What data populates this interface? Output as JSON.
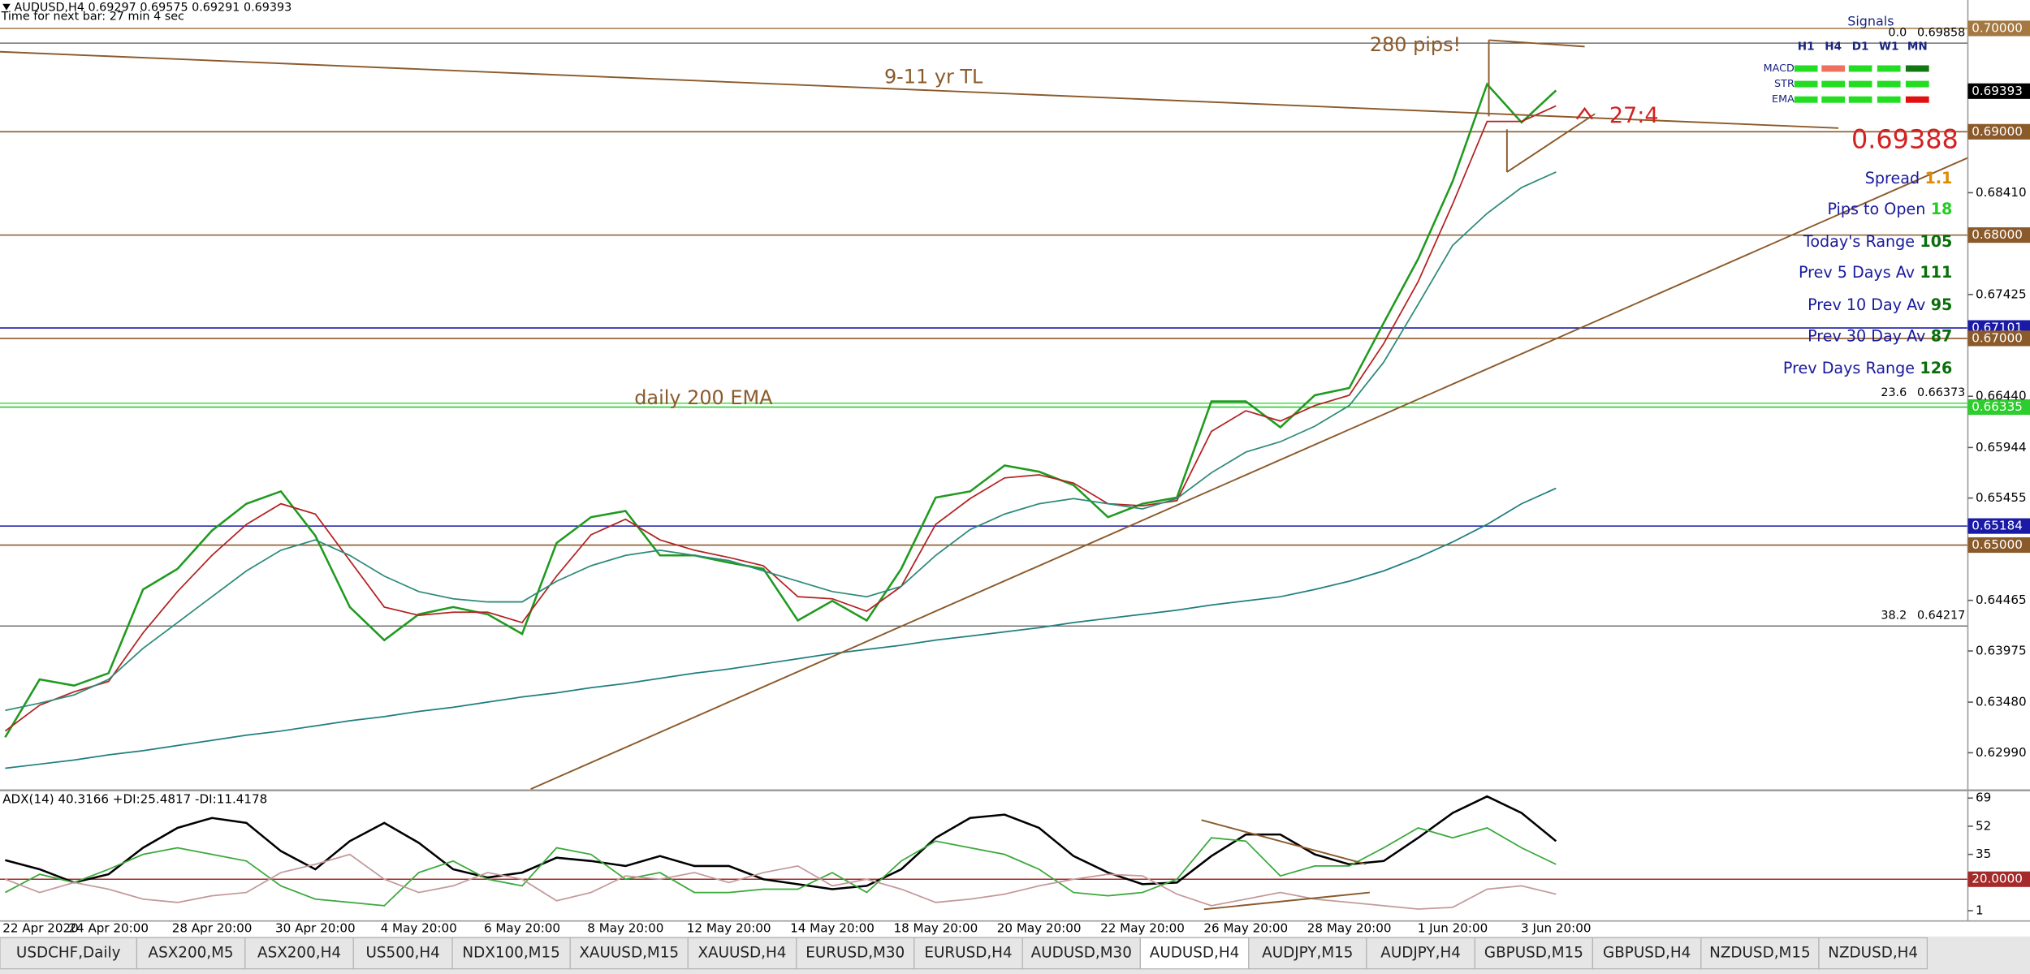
{
  "header": {
    "symbol_line": "AUDUSD,H4  0.69297 0.69575 0.69291 0.69393",
    "timer": "Time for next bar: 27 min 4 sec"
  },
  "annotations": {
    "pips": "280 pips!",
    "trendline": "9-11 yr TL",
    "ema200": "daily 200 EMA",
    "ratio": "27:4",
    "price": "0.69388"
  },
  "signals": {
    "title": "Signals",
    "columns": [
      "H1",
      "H4",
      "D1",
      "W1",
      "MN"
    ],
    "rows": [
      {
        "name": "MACD",
        "colors": [
          "#22dd22",
          "#f07060",
          "#22dd22",
          "#22dd22",
          "#117711"
        ]
      },
      {
        "name": "STR",
        "colors": [
          "#22dd22",
          "#22dd22",
          "#22dd22",
          "#22dd22",
          "#22dd22"
        ]
      },
      {
        "name": "EMA",
        "colors": [
          "#22dd22",
          "#22dd22",
          "#22dd22",
          "#22dd22",
          "#e01010"
        ]
      }
    ]
  },
  "info_panel": [
    {
      "label": "Spread",
      "value": 1.1,
      "color": "#e08a00"
    },
    {
      "label": "Pips to Open",
      "value": 18,
      "color": "#22cc22"
    },
    {
      "label": "Today's Range",
      "value": 105,
      "color": "#0a6e0a"
    },
    {
      "label": "Prev 5 Days Av",
      "value": 111,
      "color": "#0a6e0a"
    },
    {
      "label": "Prev 10 Day Av",
      "value": 95,
      "color": "#0a6e0a"
    },
    {
      "label": "Prev 30 Day Av",
      "value": 87,
      "color": "#0a6e0a"
    },
    {
      "label": "Prev Days Range",
      "value": 126,
      "color": "#0a6e0a"
    }
  ],
  "tabs": [
    {
      "label": "USDCHF,Daily"
    },
    {
      "label": "ASX200,M5"
    },
    {
      "label": "ASX200,H4"
    },
    {
      "label": "US500,H4"
    },
    {
      "label": "NDX100,M15"
    },
    {
      "label": "XAUUSD,M15"
    },
    {
      "label": "XAUUSD,H4"
    },
    {
      "label": "EURUSD,M30"
    },
    {
      "label": "EURUSD,H4"
    },
    {
      "label": "AUDUSD,M30"
    },
    {
      "label": "AUDUSD,H4",
      "active": true
    },
    {
      "label": "AUDJPY,M15"
    },
    {
      "label": "AUDJPY,H4"
    },
    {
      "label": "GBPUSD,M15"
    },
    {
      "label": "GBPUSD,H4"
    },
    {
      "label": "NZDUSD,M15"
    },
    {
      "label": "NZDUSD,H4"
    }
  ],
  "chart_data": [
    {
      "type": "line",
      "categories": [
        "22 Apr 2020",
        null,
        null,
        "24 Apr 20:00",
        null,
        null,
        "28 Apr 20:00",
        null,
        null,
        "30 Apr 20:00",
        null,
        null,
        "4 May 20:00",
        null,
        null,
        "6 May 20:00",
        null,
        null,
        "8 May 20:00",
        null,
        null,
        "12 May 20:00",
        null,
        null,
        "14 May 20:00",
        null,
        null,
        "18 May 20:00",
        null,
        null,
        "20 May 20:00",
        null,
        null,
        "22 May 20:00",
        null,
        null,
        "26 May 20:00",
        null,
        null,
        "28 May 20:00",
        null,
        null,
        "1 Jun 20:00",
        null,
        null,
        "3 Jun 20:00"
      ],
      "series": [
        {
          "color": "#1f9a1f",
          "values": [
            0.6314,
            0.637,
            0.6364,
            0.6376,
            0.6457,
            0.6477,
            0.6514,
            0.654,
            0.6552,
            0.6509,
            0.644,
            0.6408,
            0.6433,
            0.644,
            0.6433,
            0.6414,
            0.6502,
            0.6527,
            0.6533,
            0.649,
            0.649,
            0.6483,
            0.6477,
            0.6427,
            0.6446,
            0.6427,
            0.6477,
            0.6546,
            0.6552,
            0.6577,
            0.6571,
            0.6558,
            0.6527,
            0.654,
            0.6546,
            0.6639,
            0.6639,
            0.6614,
            0.6645,
            0.6652,
            0.6715,
            0.6777,
            0.6852,
            0.6946,
            0.6909,
            0.694
          ]
        },
        {
          "color": "#b22222",
          "values": [
            0.632,
            0.6345,
            0.6358,
            0.6368,
            0.6415,
            0.6455,
            0.649,
            0.652,
            0.654,
            0.653,
            0.6485,
            0.644,
            0.6432,
            0.6435,
            0.6435,
            0.6425,
            0.647,
            0.651,
            0.6525,
            0.6505,
            0.6495,
            0.6488,
            0.648,
            0.645,
            0.6448,
            0.6436,
            0.646,
            0.652,
            0.6545,
            0.6565,
            0.6568,
            0.656,
            0.654,
            0.6538,
            0.6543,
            0.661,
            0.663,
            0.662,
            0.6635,
            0.6645,
            0.6695,
            0.6755,
            0.683,
            0.691,
            0.691,
            0.6925
          ]
        },
        {
          "color": "#2e8b7a",
          "values": [
            0.634,
            0.6347,
            0.6355,
            0.637,
            0.64,
            0.6425,
            0.645,
            0.6475,
            0.6495,
            0.6505,
            0.649,
            0.647,
            0.6455,
            0.6448,
            0.6445,
            0.6445,
            0.6465,
            0.648,
            0.649,
            0.6495,
            0.649,
            0.6485,
            0.6475,
            0.6465,
            0.6455,
            0.645,
            0.646,
            0.649,
            0.6515,
            0.653,
            0.654,
            0.6545,
            0.654,
            0.6535,
            0.6545,
            0.657,
            0.659,
            0.66,
            0.6615,
            0.6635,
            0.6677,
            0.6733,
            0.679,
            0.6821,
            0.6846,
            0.6861
          ]
        },
        {
          "color": "#1f7f7f",
          "values": [
            0.6284,
            0.6288,
            0.6292,
            0.6297,
            0.6301,
            0.6306,
            0.6311,
            0.6316,
            0.632,
            0.6325,
            0.633,
            0.6334,
            0.6339,
            0.6343,
            0.6348,
            0.6353,
            0.6357,
            0.6362,
            0.6366,
            0.6371,
            0.6376,
            0.638,
            0.6385,
            0.639,
            0.6395,
            0.6399,
            0.6403,
            0.6408,
            0.6412,
            0.6416,
            0.642,
            0.6425,
            0.6429,
            0.6433,
            0.6437,
            0.6442,
            0.6446,
            0.645,
            0.6457,
            0.6465,
            0.6475,
            0.6488,
            0.6503,
            0.652,
            0.654,
            0.6555
          ]
        }
      ],
      "ylim": [
        0.62639,
        0.70275
      ],
      "yticks": [
        {
          "value": 0.6841,
          "label": "0.68410"
        },
        0.67425,
        {
          "value": 0.6644,
          "label": "0.66440"
        },
        0.65944,
        0.65455,
        0.64465,
        0.63975,
        {
          "value": 0.6348,
          "label": "0.63480"
        },
        {
          "value": 0.6299,
          "label": "0.62990"
        }
      ],
      "levels": [
        {
          "value": 0.7,
          "label": "0.70000",
          "color": "#a47840"
        },
        {
          "value": 0.69,
          "label": "0.69000",
          "color": "#8b5a2b"
        },
        {
          "value": 0.68,
          "label": "0.68000",
          "color": "#8b5a2b"
        },
        {
          "value": 0.67101,
          "color": "#1a1aa6"
        },
        {
          "value": 0.67,
          "label": "0.67000",
          "color": "#8b5a2b"
        },
        {
          "value": 0.66335,
          "color": "#2ecc2e"
        },
        {
          "value": 0.65184,
          "color": "#1a1aa6"
        },
        {
          "value": 0.65,
          "label": "0.65000",
          "color": "#8b5a2b"
        }
      ],
      "bid": 0.69393,
      "fib_levels": [
        {
          "name": "0.0",
          "value": 0.69858
        },
        {
          "name": "23.6",
          "value": 0.66373
        },
        {
          "name": "38.2",
          "value": 0.64217
        }
      ]
    },
    {
      "type": "line",
      "title": "ADX(14) 40.3166 +DI:25.4817 -DI:11.4178",
      "series": [
        {
          "color": "#000000",
          "values": [
            31.5,
            26,
            18,
            23,
            39,
            51,
            57,
            54,
            37,
            26,
            43,
            54,
            42,
            26,
            21,
            24,
            33,
            31,
            28,
            34,
            28,
            28,
            20,
            17,
            14,
            16,
            26,
            45,
            57,
            59,
            51,
            34,
            24,
            17,
            18,
            34,
            47,
            47,
            35,
            29,
            31,
            45,
            60,
            70,
            60,
            43
          ]
        },
        {
          "color": "#3aa83a",
          "values": [
            12,
            23,
            18,
            26,
            35,
            39,
            35,
            31,
            16,
            8,
            6,
            4,
            24,
            31,
            20,
            16,
            39,
            35,
            20,
            24,
            12,
            12,
            14,
            14,
            24,
            12,
            31,
            43,
            39,
            35,
            26,
            12,
            10,
            12,
            20,
            45,
            43,
            22,
            28,
            28,
            39,
            51,
            45,
            51,
            39,
            29
          ]
        },
        {
          "color": "#c49a9a",
          "values": [
            20,
            12,
            18,
            14,
            8,
            6,
            10,
            12,
            24,
            29,
            35,
            20,
            12,
            16,
            24,
            20,
            7,
            12,
            22,
            20,
            24,
            18,
            24,
            28,
            16,
            20,
            14,
            6,
            8,
            11,
            16,
            20,
            23,
            22,
            11,
            4,
            8,
            12,
            8,
            6,
            4,
            2,
            3,
            14,
            16,
            11
          ]
        }
      ],
      "ylim": [
        -5.2,
        72.9
      ],
      "yticks": [
        69,
        52,
        35,
        1
      ],
      "levels": [
        {
          "value": 20,
          "label": "20.0000",
          "color": "#a52a2a"
        }
      ]
    }
  ]
}
